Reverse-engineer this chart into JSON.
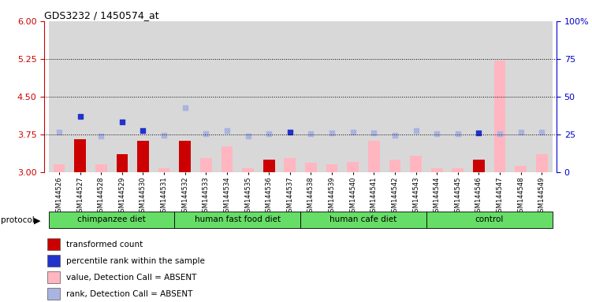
{
  "title": "GDS3232 / 1450574_at",
  "samples": [
    "GSM144526",
    "GSM144527",
    "GSM144528",
    "GSM144529",
    "GSM144530",
    "GSM144531",
    "GSM144532",
    "GSM144533",
    "GSM144534",
    "GSM144535",
    "GSM144536",
    "GSM144537",
    "GSM144538",
    "GSM144539",
    "GSM144540",
    "GSM144541",
    "GSM144542",
    "GSM144543",
    "GSM144544",
    "GSM144545",
    "GSM144546",
    "GSM144547",
    "GSM144548",
    "GSM144549"
  ],
  "groups": [
    {
      "label": "chimpanzee diet",
      "start": 0,
      "end": 6
    },
    {
      "label": "human fast food diet",
      "start": 6,
      "end": 12
    },
    {
      "label": "human cafe diet",
      "start": 12,
      "end": 18
    },
    {
      "label": "control",
      "start": 18,
      "end": 24
    }
  ],
  "group_color": "#66dd66",
  "bar_values": [
    3.15,
    3.65,
    3.15,
    3.35,
    3.62,
    3.08,
    3.62,
    3.28,
    3.52,
    3.08,
    3.25,
    3.28,
    3.18,
    3.15,
    3.2,
    3.62,
    3.25,
    3.32,
    3.08,
    3.08,
    3.25,
    5.22,
    3.12,
    3.35
  ],
  "bar_colors": [
    "#ffb6c1",
    "#cc0000",
    "#ffb6c1",
    "#cc0000",
    "#cc0000",
    "#ffb6c1",
    "#cc0000",
    "#ffb6c1",
    "#ffb6c1",
    "#ffb6c1",
    "#cc0000",
    "#ffb6c1",
    "#ffb6c1",
    "#ffb6c1",
    "#ffb6c1",
    "#ffb6c1",
    "#ffb6c1",
    "#ffb6c1",
    "#ffb6c1",
    "#ffb6c1",
    "#cc0000",
    "#ffb6c1",
    "#ffb6c1",
    "#ffb6c1"
  ],
  "dot_left_values": [
    3.8,
    4.1,
    3.72,
    4.0,
    3.82,
    3.73,
    4.28,
    3.77,
    3.82,
    3.72,
    3.77,
    3.8,
    3.77,
    3.78,
    3.8,
    3.78,
    3.73,
    3.82,
    3.77,
    3.77,
    3.78,
    3.77,
    3.8,
    3.8
  ],
  "dot_colors": [
    "#aab4e0",
    "#2233cc",
    "#aab4e0",
    "#2233cc",
    "#2233cc",
    "#aab4e0",
    "#aab4e0",
    "#aab4e0",
    "#aab4e0",
    "#aab4e0",
    "#aab4e0",
    "#2233cc",
    "#aab4e0",
    "#aab4e0",
    "#aab4e0",
    "#aab4e0",
    "#aab4e0",
    "#aab4e0",
    "#aab4e0",
    "#aab4e0",
    "#2233cc",
    "#aab4e0",
    "#aab4e0",
    "#aab4e0"
  ],
  "ylim_left": [
    3.0,
    6.0
  ],
  "yticks_left": [
    3.0,
    3.75,
    4.5,
    5.25,
    6.0
  ],
  "ylim_right": [
    0,
    100
  ],
  "yticks_right": [
    0,
    25,
    50,
    75,
    100
  ],
  "hlines": [
    3.75,
    4.5,
    5.25
  ],
  "background_color": "#ffffff",
  "left_axis_color": "#cc0000",
  "right_axis_color": "#0000cc",
  "legend_items": [
    {
      "label": "transformed count",
      "color": "#cc0000"
    },
    {
      "label": "percentile rank within the sample",
      "color": "#2233cc"
    },
    {
      "label": "value, Detection Call = ABSENT",
      "color": "#ffb6c1"
    },
    {
      "label": "rank, Detection Call = ABSENT",
      "color": "#aab4e0"
    }
  ]
}
